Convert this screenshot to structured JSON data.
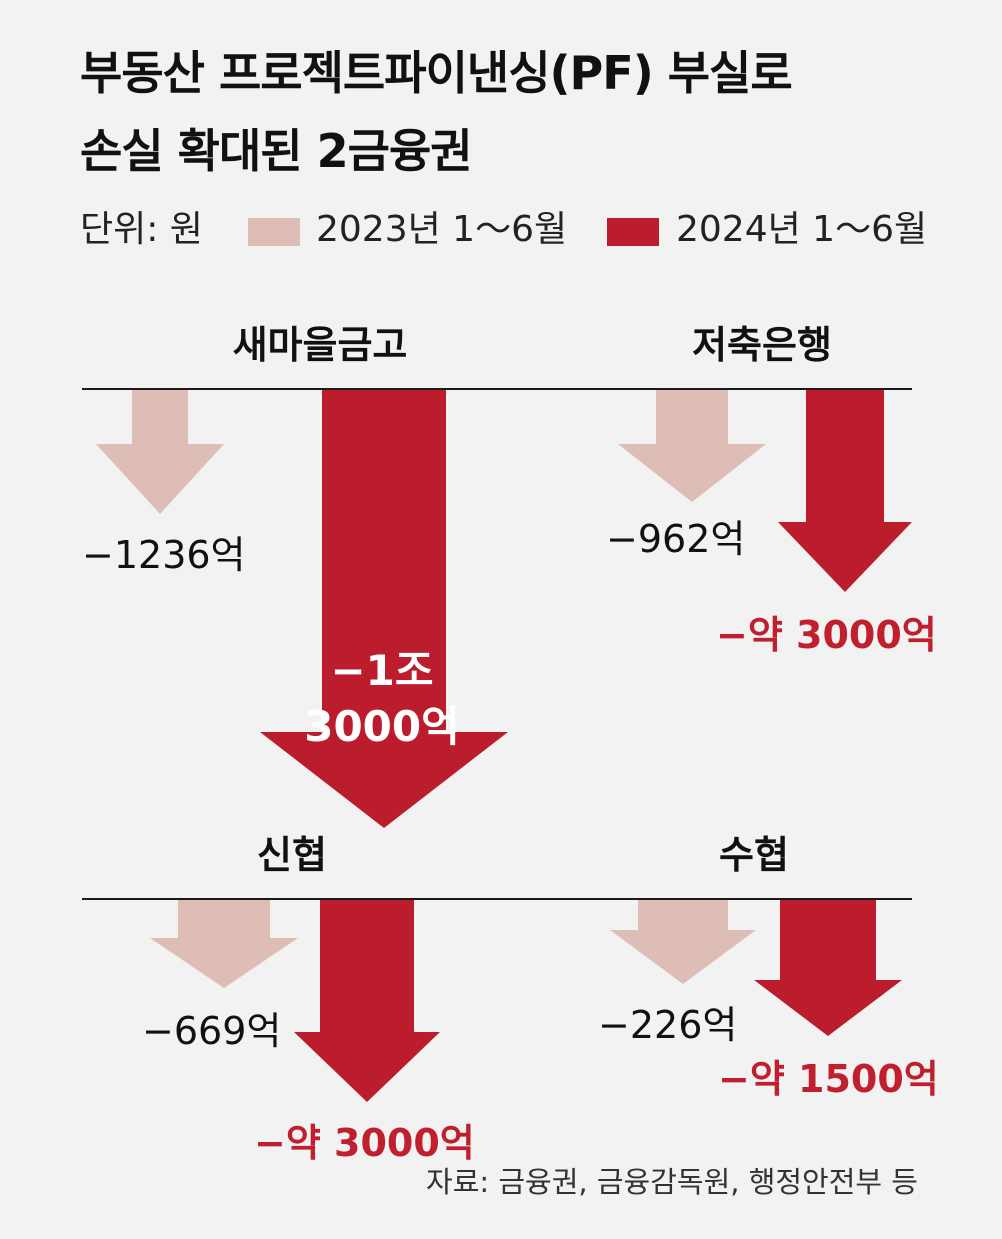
{
  "title_line1": "부동산 프로젝트파이낸싱(PF) 부실로",
  "title_line2": "손실 확대된 2금융권",
  "unit": "단위: 원",
  "source": "자료: 금융권, 금융감독원, 행정안전부 등",
  "colors": {
    "2023": "#ddbdb5",
    "2024": "#bb1d2c",
    "highlight_text": "#c01f2d",
    "background": "#f2f2f2"
  },
  "chart_data": {
    "type": "bar",
    "orientation": "downward-arrows",
    "unit": "억 원",
    "series": [
      {
        "name": "2023년 1～6월",
        "color": "#ddbdb5"
      },
      {
        "name": "2024년 1～6월",
        "color": "#bb1d2c"
      }
    ],
    "panels": [
      {
        "name": "새마을금고",
        "values": [
          -1236,
          -13000
        ],
        "labels": [
          "−1236억",
          "−1조 3000억"
        ]
      },
      {
        "name": "저축은행",
        "values": [
          -962,
          -3000
        ],
        "labels": [
          "−962억",
          "−약 3000억"
        ]
      },
      {
        "name": "신협",
        "values": [
          -669,
          -3000
        ],
        "labels": [
          "−669억",
          "−약 3000억"
        ]
      },
      {
        "name": "수협",
        "values": [
          -226,
          -1500
        ],
        "labels": [
          "−226억",
          "−약 1500억"
        ]
      }
    ]
  }
}
